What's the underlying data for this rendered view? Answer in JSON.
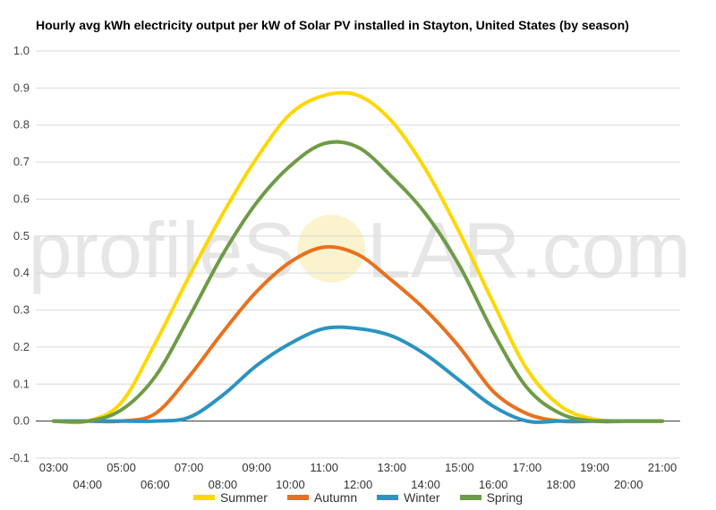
{
  "chart_data": {
    "type": "line",
    "title": "Hourly avg kWh electricity output per kW of Solar PV installed in Stayton, United States (by season)",
    "xlabel": "",
    "ylabel": "",
    "ylim": [
      -0.1,
      1.0
    ],
    "yticks": [
      "-0.1",
      "0.0",
      "0.1",
      "0.2",
      "0.3",
      "0.4",
      "0.5",
      "0.6",
      "0.7",
      "0.8",
      "0.9",
      "1.0"
    ],
    "x": [
      "03:00",
      "04:00",
      "05:00",
      "06:00",
      "07:00",
      "08:00",
      "09:00",
      "10:00",
      "11:00",
      "12:00",
      "13:00",
      "14:00",
      "15:00",
      "16:00",
      "17:00",
      "18:00",
      "19:00",
      "20:00",
      "21:00"
    ],
    "grid": true,
    "legend": "bottom",
    "watermark": {
      "left": "profileS",
      "right": "LAR.com"
    },
    "series": [
      {
        "name": "Summer",
        "color": "#FFD700",
        "values": [
          0.0,
          0.0,
          0.05,
          0.21,
          0.39,
          0.56,
          0.71,
          0.83,
          0.88,
          0.88,
          0.81,
          0.68,
          0.51,
          0.32,
          0.14,
          0.04,
          0.005,
          0.0,
          0.0
        ]
      },
      {
        "name": "Autumn",
        "color": "#E8711E",
        "values": [
          0.0,
          0.0,
          0.0,
          0.02,
          0.12,
          0.24,
          0.35,
          0.43,
          0.47,
          0.45,
          0.38,
          0.3,
          0.2,
          0.08,
          0.02,
          0.0,
          0.0,
          0.0,
          0.0
        ]
      },
      {
        "name": "Winter",
        "color": "#2B93C1",
        "values": [
          0.0,
          0.0,
          0.0,
          0.0,
          0.01,
          0.07,
          0.15,
          0.21,
          0.25,
          0.25,
          0.23,
          0.18,
          0.11,
          0.04,
          0.0,
          0.0,
          0.0,
          0.0,
          0.0
        ]
      },
      {
        "name": "Spring",
        "color": "#6E9B45",
        "values": [
          0.0,
          0.0,
          0.03,
          0.12,
          0.28,
          0.45,
          0.59,
          0.69,
          0.75,
          0.74,
          0.66,
          0.56,
          0.42,
          0.24,
          0.09,
          0.02,
          0.0,
          0.0,
          0.0
        ]
      }
    ]
  }
}
